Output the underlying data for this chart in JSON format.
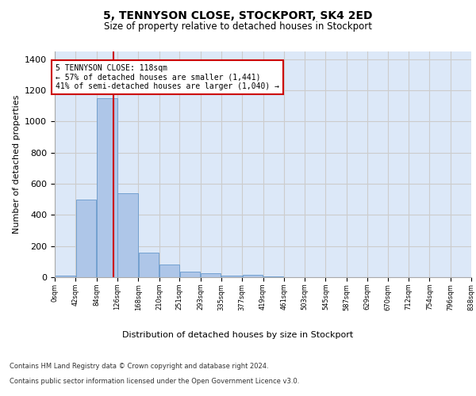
{
  "title": "5, TENNYSON CLOSE, STOCKPORT, SK4 2ED",
  "subtitle": "Size of property relative to detached houses in Stockport",
  "xlabel": "Distribution of detached houses by size in Stockport",
  "ylabel": "Number of detached properties",
  "property_size": 118,
  "annotation_line1": "5 TENNYSON CLOSE: 118sqm",
  "annotation_line2": "← 57% of detached houses are smaller (1,441)",
  "annotation_line3": "41% of semi-detached houses are larger (1,040) →",
  "footnote1": "Contains HM Land Registry data © Crown copyright and database right 2024.",
  "footnote2": "Contains public sector information licensed under the Open Government Licence v3.0.",
  "bin_edges": [
    0,
    42,
    84,
    126,
    168,
    210,
    251,
    293,
    335,
    377,
    419,
    461,
    503,
    545,
    587,
    629,
    670,
    712,
    754,
    796,
    838
  ],
  "bar_heights": [
    10,
    500,
    1150,
    540,
    160,
    80,
    35,
    25,
    10,
    15,
    5,
    0,
    0,
    0,
    0,
    0,
    0,
    0,
    0,
    0
  ],
  "bar_color": "#aec6e8",
  "bar_edgecolor": "#6699cc",
  "vline_color": "#cc0000",
  "vline_x": 118,
  "ylim": [
    0,
    1450
  ],
  "yticks": [
    0,
    200,
    400,
    600,
    800,
    1000,
    1200,
    1400
  ],
  "grid_color": "#cccccc",
  "background_color": "#dce8f8",
  "annotation_box_edgecolor": "#cc0000",
  "annotation_box_facecolor": "#ffffff",
  "title_fontsize": 10,
  "subtitle_fontsize": 8.5,
  "ylabel_fontsize": 8,
  "xtick_fontsize": 6,
  "ytick_fontsize": 8,
  "xlabel_fontsize": 8,
  "footnote_fontsize": 6
}
